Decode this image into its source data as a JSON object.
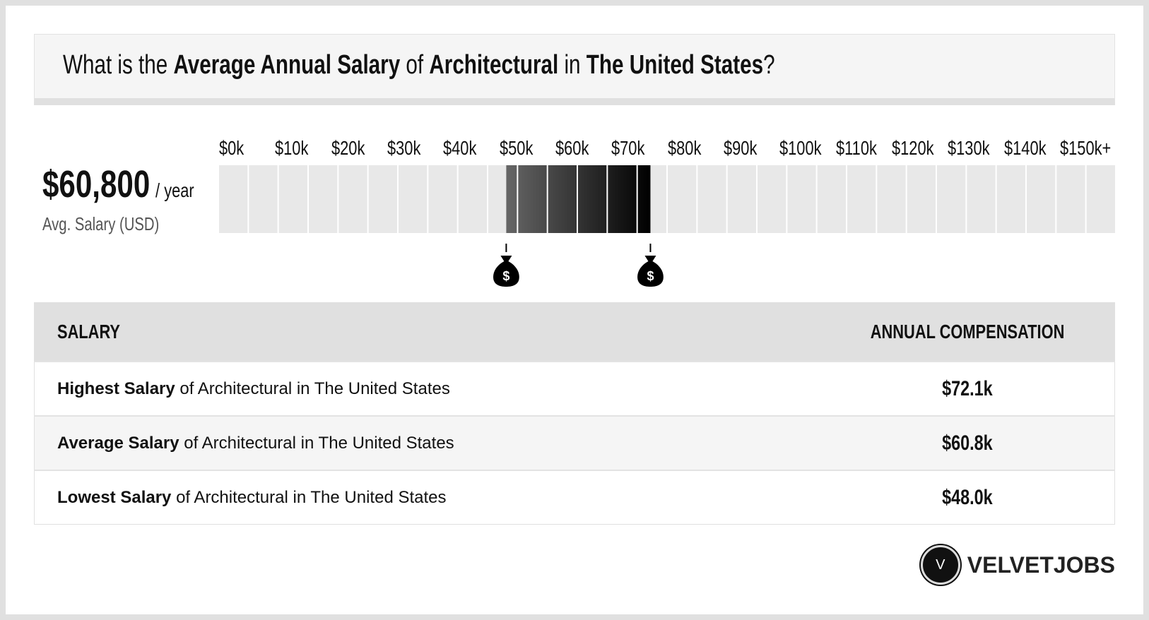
{
  "header": {
    "pre": "What is the ",
    "b1": "Average Annual Salary",
    "m1": " of ",
    "b2": "Architectural",
    "m2": " in ",
    "b3": "The United States",
    "post": "?"
  },
  "summary": {
    "value": "$60,800",
    "unit": "/ year",
    "label": "Avg. Salary (USD)"
  },
  "chart_data": {
    "type": "bar",
    "tick_labels": [
      "$0k",
      "$10k",
      "$20k",
      "$30k",
      "$40k",
      "$50k",
      "$60k",
      "$70k",
      "$80k",
      "$90k",
      "$100k",
      "$110k",
      "$120k",
      "$130k",
      "$140k",
      "$150k+"
    ],
    "xlim": [
      0,
      150
    ],
    "unit": "k USD",
    "segment_step": 5,
    "range": {
      "low": 48.0,
      "high": 72.1,
      "average": 60.8
    },
    "colors": {
      "empty": "#e8e8e8",
      "range_start": "#666666",
      "range_end": "#000000"
    },
    "markers": [
      {
        "value": 48.0,
        "icon": "money-bag-icon"
      },
      {
        "value": 72.1,
        "icon": "money-bag-icon"
      }
    ]
  },
  "table": {
    "headers": [
      "SALARY",
      "ANNUAL COMPENSATION"
    ],
    "rows": [
      {
        "bold": "Highest Salary",
        "rest": " of Architectural in The United States",
        "value": "$72.1k"
      },
      {
        "bold": "Average Salary",
        "rest": " of Architectural in The United States",
        "value": "$60.8k"
      },
      {
        "bold": "Lowest Salary",
        "rest": " of Architectural in The United States",
        "value": "$48.0k"
      }
    ]
  },
  "brand": {
    "letter": "V",
    "name": "VELVETJOBS"
  }
}
